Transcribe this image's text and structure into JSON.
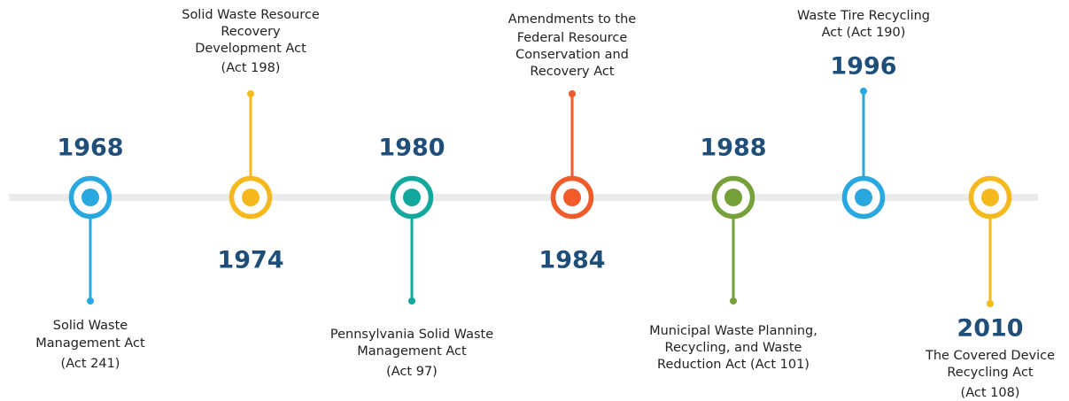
{
  "timeline": {
    "events": [
      {
        "year": "1968",
        "color": "#29a8e0",
        "lines": [
          "Solid Waste",
          "Management Act",
          "(Act 241)"
        ]
      },
      {
        "year": "1974",
        "color": "#f5b91e",
        "lines": [
          "Solid Waste Resource",
          "Recovery",
          "Development Act",
          "(Act 198)"
        ]
      },
      {
        "year": "1980",
        "color": "#13a89e",
        "lines": [
          "Pennsylvania Solid Waste",
          "Management Act",
          "(Act 97)"
        ]
      },
      {
        "year": "1984",
        "color": "#f15a29",
        "lines": [
          "Amendments to the",
          "Federal Resource",
          "Conservation and",
          "Recovery Act"
        ]
      },
      {
        "year": "1988",
        "color": "#76a03a",
        "lines": [
          "Municipal Waste Planning,",
          "Recycling, and Waste",
          "Reduction Act (Act 101)"
        ]
      },
      {
        "year": "1996",
        "color": "#29a8e0",
        "lines": [
          "Waste Tire Recycling",
          "Act (Act 190)"
        ]
      },
      {
        "year": "2010",
        "color": "#f5b91e",
        "lines": [
          "The Covered Device",
          "Recycling Act",
          "(Act 108)"
        ]
      }
    ]
  }
}
